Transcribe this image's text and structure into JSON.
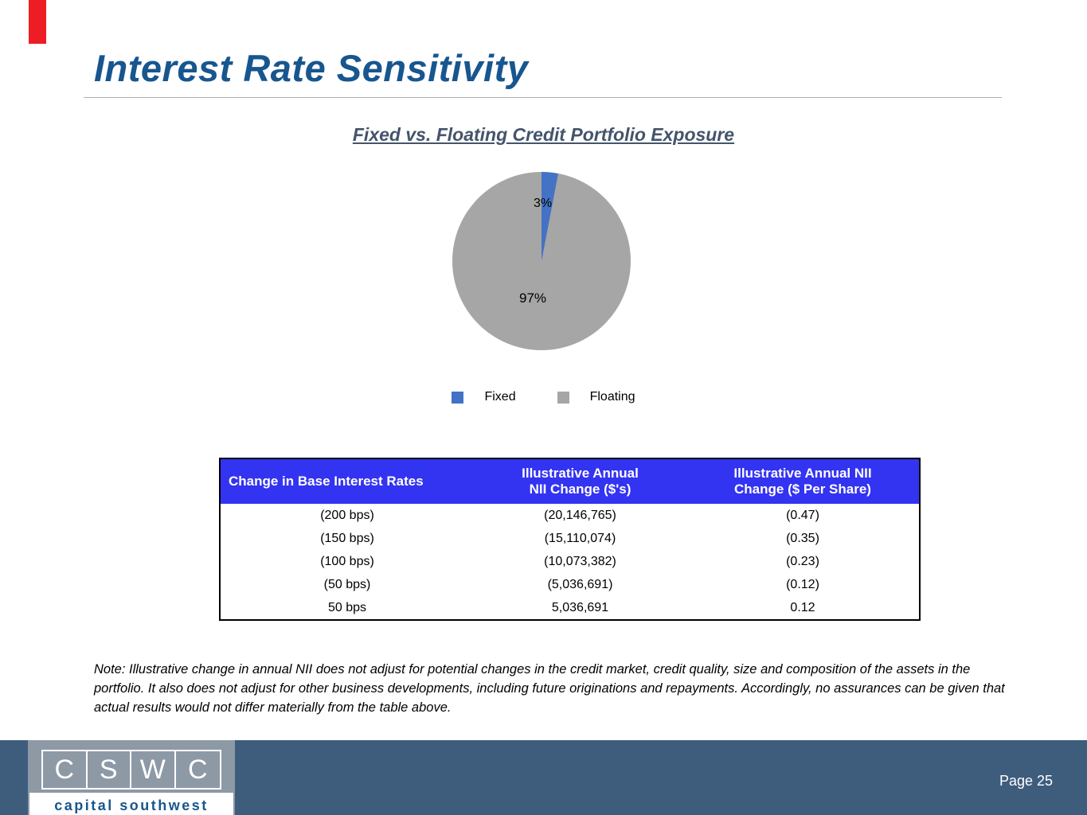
{
  "slide": {
    "title": "Interest Rate Sensitivity"
  },
  "chart_data": {
    "type": "pie",
    "title": "Fixed vs. Floating Credit Portfolio Exposure",
    "slices": [
      {
        "label": "Fixed",
        "value": 3,
        "display": "3%",
        "color": "#4472c4"
      },
      {
        "label": "Floating",
        "value": 97,
        "display": "97%",
        "color": "#a6a6a6"
      }
    ],
    "legend_position": "bottom"
  },
  "table": {
    "header_bg": "#3333f2",
    "headers": [
      "Change in Base Interest Rates",
      "Illustrative Annual\nNII Change ($'s)",
      "Illustrative Annual NII\nChange ($ Per Share)"
    ],
    "rows": [
      [
        "(200 bps)",
        "(20,146,765)",
        "(0.47)"
      ],
      [
        "(150 bps)",
        "(15,110,074)",
        "(0.35)"
      ],
      [
        "(100 bps)",
        "(10,073,382)",
        "(0.23)"
      ],
      [
        "(50 bps)",
        "(5,036,691)",
        "(0.12)"
      ],
      [
        "50 bps",
        "5,036,691",
        "0.12"
      ]
    ]
  },
  "note": {
    "text": "Note:  Illustrative change in annual NII does not adjust for potential changes in the credit market, credit quality, size and composition of the assets in the portfolio. It also does not adjust for other business developments, including future originations and repayments. Accordingly, no assurances can be given that actual results would not differ materially from the table above."
  },
  "footer": {
    "page_label": "Page 25",
    "logo_letters": [
      "C",
      "S",
      "W",
      "C"
    ],
    "logo_subtitle": "capital southwest"
  },
  "colors": {
    "accent_red": "#ee1c25",
    "title_blue": "#17568f",
    "chart_title_blue": "#44546a",
    "footer_bar": "#3e5d7d",
    "logo_bg": "#8e99a6"
  }
}
